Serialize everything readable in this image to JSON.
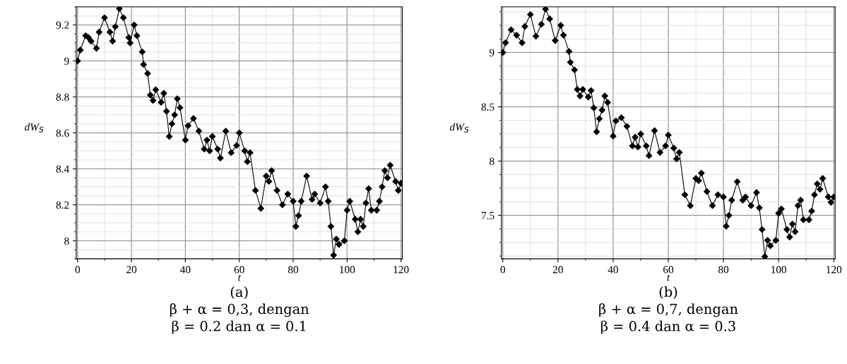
{
  "chart_data": [
    {
      "type": "line",
      "xlabel": "t",
      "ylabel": "dW$_{S}$",
      "xlim": [
        -0.5,
        120.5
      ],
      "ylim": [
        7.9,
        9.3
      ],
      "xticks": [
        0,
        20,
        40,
        60,
        80,
        100,
        120
      ],
      "yticks": [
        8,
        8.2,
        8.4,
        8.6,
        8.8,
        9,
        9.2
      ],
      "grid": true,
      "marker": "diamond",
      "line_style": "solid",
      "annotations": [
        "(a)",
        "β + α = 0,3, dengan",
        "β = 0.2 dan α = 0.1"
      ],
      "series": [
        {
          "color": "#000000",
          "x": [
            0,
            1,
            3,
            4,
            5,
            7,
            8,
            10,
            12,
            13,
            14,
            15.5,
            17,
            19,
            19.5,
            21,
            22,
            24,
            24.5,
            26,
            27,
            28,
            29,
            31,
            32,
            33,
            34,
            35,
            36,
            37,
            38,
            40,
            41,
            43,
            45,
            47,
            48,
            49,
            50,
            52,
            53,
            55,
            57,
            59,
            60,
            62,
            63,
            64,
            66,
            68,
            70,
            71,
            72,
            74,
            76,
            78,
            80,
            81,
            82,
            83,
            85,
            87,
            88,
            90,
            92,
            93,
            94,
            95,
            96,
            97,
            99,
            100,
            101,
            103,
            104,
            105,
            106,
            107,
            108,
            109,
            111,
            112,
            113,
            114,
            115,
            116,
            118,
            119,
            120
          ],
          "values": [
            9.0,
            9.06,
            9.14,
            9.13,
            9.11,
            9.07,
            9.16,
            9.24,
            9.16,
            9.11,
            9.19,
            9.29,
            9.24,
            9.13,
            9.1,
            9.2,
            9.14,
            9.05,
            8.98,
            8.93,
            8.81,
            8.78,
            8.84,
            8.77,
            8.82,
            8.72,
            8.58,
            8.65,
            8.7,
            8.79,
            8.74,
            8.56,
            8.64,
            8.68,
            8.61,
            8.51,
            8.56,
            8.5,
            8.58,
            8.51,
            8.46,
            8.61,
            8.49,
            8.53,
            8.6,
            8.5,
            8.44,
            8.49,
            8.28,
            8.18,
            8.36,
            8.33,
            8.39,
            8.28,
            8.2,
            8.26,
            8.22,
            8.08,
            8.14,
            8.22,
            8.36,
            8.23,
            8.26,
            8.21,
            8.3,
            8.22,
            8.08,
            7.92,
            8.01,
            7.98,
            8.0,
            8.17,
            8.22,
            8.12,
            8.05,
            8.12,
            8.08,
            8.21,
            8.29,
            8.17,
            8.17,
            8.22,
            8.3,
            8.39,
            8.35,
            8.42,
            8.33,
            8.28,
            8.32
          ]
        }
      ]
    },
    {
      "type": "line",
      "xlabel": "t",
      "ylabel": "dW$_{S}$",
      "xlim": [
        -0.5,
        120.5
      ],
      "ylim": [
        7.1,
        9.42
      ],
      "xticks": [
        0,
        20,
        40,
        60,
        80,
        100,
        120
      ],
      "yticks": [
        7.5,
        8,
        8.5,
        9
      ],
      "grid": true,
      "marker": "diamond",
      "line_style": "solid",
      "annotations": [
        "(b)",
        "β + α = 0,7, dengan",
        "β = 0.4 dan α = 0.3"
      ],
      "series": [
        {
          "color": "#000000",
          "x": [
            0,
            1,
            3,
            5,
            7,
            8,
            10,
            12,
            14,
            15.5,
            17,
            19,
            21,
            22,
            24,
            24.5,
            26,
            27,
            28,
            29,
            31,
            32,
            33,
            34,
            35,
            36,
            37,
            38,
            40,
            41,
            43,
            45,
            47,
            48,
            49,
            50,
            52,
            53,
            55,
            57,
            59,
            60,
            62,
            63,
            64,
            66,
            68,
            70,
            71,
            72,
            74,
            76,
            78,
            80,
            81,
            82,
            83,
            85,
            87,
            88,
            90,
            92,
            93,
            94,
            95,
            96,
            97,
            99,
            100,
            101,
            103,
            104,
            105,
            106,
            107,
            108,
            109,
            111,
            112,
            113,
            114,
            115,
            116,
            118,
            119,
            120
          ],
          "values": [
            9.0,
            9.09,
            9.21,
            9.16,
            9.09,
            9.24,
            9.35,
            9.15,
            9.26,
            9.4,
            9.31,
            9.11,
            9.25,
            9.16,
            9.01,
            8.91,
            8.84,
            8.66,
            8.6,
            8.66,
            8.59,
            8.65,
            8.49,
            8.27,
            8.39,
            8.47,
            8.6,
            8.54,
            8.23,
            8.37,
            8.4,
            8.32,
            8.14,
            8.22,
            8.13,
            8.25,
            8.14,
            8.05,
            8.28,
            8.08,
            8.14,
            8.24,
            8.12,
            8.02,
            8.08,
            7.69,
            7.59,
            7.84,
            7.82,
            7.89,
            7.72,
            7.59,
            7.69,
            7.67,
            7.4,
            7.5,
            7.64,
            7.81,
            7.64,
            7.67,
            7.59,
            7.71,
            7.57,
            7.37,
            7.12,
            7.27,
            7.22,
            7.27,
            7.52,
            7.56,
            7.37,
            7.3,
            7.42,
            7.35,
            7.59,
            7.64,
            7.46,
            7.46,
            7.54,
            7.69,
            7.79,
            7.74,
            7.84,
            7.67,
            7.62,
            7.67
          ]
        }
      ]
    }
  ]
}
